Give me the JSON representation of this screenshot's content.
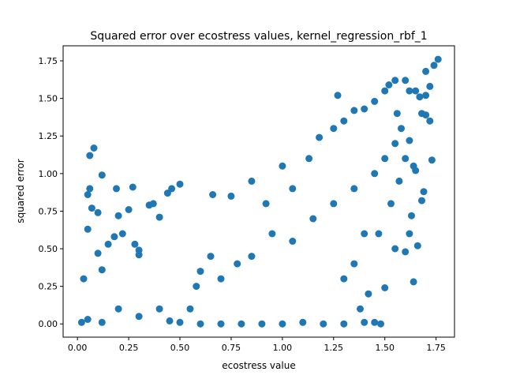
{
  "chart_data": {
    "type": "scatter",
    "title": "Squared error over ecostress values, kernel_regression_rbf_1",
    "xlabel": "ecostress value",
    "ylabel": "squared error",
    "xlim": [
      -0.07,
      1.84
    ],
    "ylim": [
      -0.088,
      1.85
    ],
    "xticks": [
      0.0,
      0.25,
      0.5,
      0.75,
      1.0,
      1.25,
      1.5,
      1.75
    ],
    "yticks": [
      0.0,
      0.25,
      0.5,
      0.75,
      1.0,
      1.25,
      1.5,
      1.75
    ],
    "xtick_labels": [
      "0.00",
      "0.25",
      "0.50",
      "0.75",
      "1.00",
      "1.25",
      "1.50",
      "1.75"
    ],
    "ytick_labels": [
      "0.00",
      "0.25",
      "0.50",
      "0.75",
      "1.00",
      "1.25",
      "1.50",
      "1.75"
    ],
    "grid": false,
    "marker_color": "#1f77b4",
    "series": [
      {
        "points": [
          [
            0.02,
            0.01
          ],
          [
            0.05,
            0.03
          ],
          [
            0.03,
            0.3
          ],
          [
            0.05,
            0.63
          ],
          [
            0.06,
            1.12
          ],
          [
            0.08,
            1.17
          ],
          [
            0.05,
            0.86
          ],
          [
            0.06,
            0.9
          ],
          [
            0.07,
            0.77
          ],
          [
            0.1,
            0.74
          ],
          [
            0.12,
            0.99
          ],
          [
            0.1,
            0.47
          ],
          [
            0.12,
            0.36
          ],
          [
            0.15,
            0.53
          ],
          [
            0.18,
            0.58
          ],
          [
            0.19,
            0.9
          ],
          [
            0.2,
            0.72
          ],
          [
            0.22,
            0.6
          ],
          [
            0.25,
            0.76
          ],
          [
            0.27,
            0.91
          ],
          [
            0.28,
            0.53
          ],
          [
            0.3,
            0.49
          ],
          [
            0.3,
            0.46
          ],
          [
            0.35,
            0.79
          ],
          [
            0.37,
            0.8
          ],
          [
            0.4,
            0.71
          ],
          [
            0.44,
            0.87
          ],
          [
            0.46,
            0.9
          ],
          [
            0.5,
            0.93
          ],
          [
            0.12,
            0.01
          ],
          [
            0.2,
            0.1
          ],
          [
            0.3,
            0.05
          ],
          [
            0.4,
            0.1
          ],
          [
            0.45,
            0.02
          ],
          [
            0.55,
            0.1
          ],
          [
            0.58,
            0.25
          ],
          [
            0.66,
            0.86
          ],
          [
            0.75,
            0.85
          ],
          [
            0.85,
            0.95
          ],
          [
            0.92,
            0.8
          ],
          [
            1.0,
            1.05
          ],
          [
            1.05,
            0.9
          ],
          [
            1.13,
            1.1
          ],
          [
            1.18,
            1.24
          ],
          [
            1.25,
            1.3
          ],
          [
            1.27,
            1.52
          ],
          [
            1.3,
            1.35
          ],
          [
            1.35,
            1.42
          ],
          [
            1.4,
            1.43
          ],
          [
            1.45,
            1.48
          ],
          [
            1.5,
            1.55
          ],
          [
            1.52,
            1.59
          ],
          [
            1.55,
            1.62
          ],
          [
            1.6,
            1.62
          ],
          [
            1.62,
            1.55
          ],
          [
            1.65,
            1.55
          ],
          [
            1.67,
            1.51
          ],
          [
            1.7,
            1.52
          ],
          [
            1.72,
            1.58
          ],
          [
            1.74,
            1.72
          ],
          [
            1.76,
            1.76
          ],
          [
            1.7,
            1.68
          ],
          [
            1.72,
            1.35
          ],
          [
            1.7,
            1.39
          ],
          [
            1.68,
            1.4
          ],
          [
            1.73,
            1.09
          ],
          [
            1.62,
            1.22
          ],
          [
            1.64,
            1.05
          ],
          [
            1.65,
            1.02
          ],
          [
            1.69,
            0.88
          ],
          [
            1.68,
            0.82
          ],
          [
            1.63,
            0.72
          ],
          [
            1.62,
            0.6
          ],
          [
            1.66,
            0.52
          ],
          [
            1.64,
            0.28
          ],
          [
            1.6,
            0.48
          ],
          [
            1.55,
            0.5
          ],
          [
            1.5,
            0.24
          ],
          [
            1.48,
            0.0
          ],
          [
            1.45,
            0.01
          ],
          [
            1.4,
            0.01
          ],
          [
            1.3,
            0.0
          ],
          [
            1.2,
            0.0
          ],
          [
            1.1,
            0.01
          ],
          [
            1.0,
            0.0
          ],
          [
            0.9,
            0.0
          ],
          [
            0.8,
            0.0
          ],
          [
            0.7,
            0.0
          ],
          [
            0.6,
            0.0
          ],
          [
            0.5,
            0.01
          ],
          [
            1.05,
            0.55
          ],
          [
            0.95,
            0.6
          ],
          [
            0.85,
            0.45
          ],
          [
            0.78,
            0.4
          ],
          [
            0.7,
            0.3
          ],
          [
            0.65,
            0.45
          ],
          [
            0.6,
            0.35
          ],
          [
            1.15,
            0.7
          ],
          [
            1.25,
            0.8
          ],
          [
            1.35,
            0.9
          ],
          [
            1.45,
            1.0
          ],
          [
            1.5,
            1.1
          ],
          [
            1.55,
            1.2
          ],
          [
            1.58,
            1.3
          ],
          [
            1.4,
            0.6
          ],
          [
            1.35,
            0.4
          ],
          [
            1.3,
            0.3
          ],
          [
            1.38,
            0.1
          ],
          [
            1.42,
            0.2
          ],
          [
            1.47,
            0.6
          ],
          [
            1.53,
            0.8
          ],
          [
            1.57,
            0.95
          ],
          [
            1.6,
            1.1
          ],
          [
            1.56,
            1.4
          ]
        ]
      }
    ]
  }
}
